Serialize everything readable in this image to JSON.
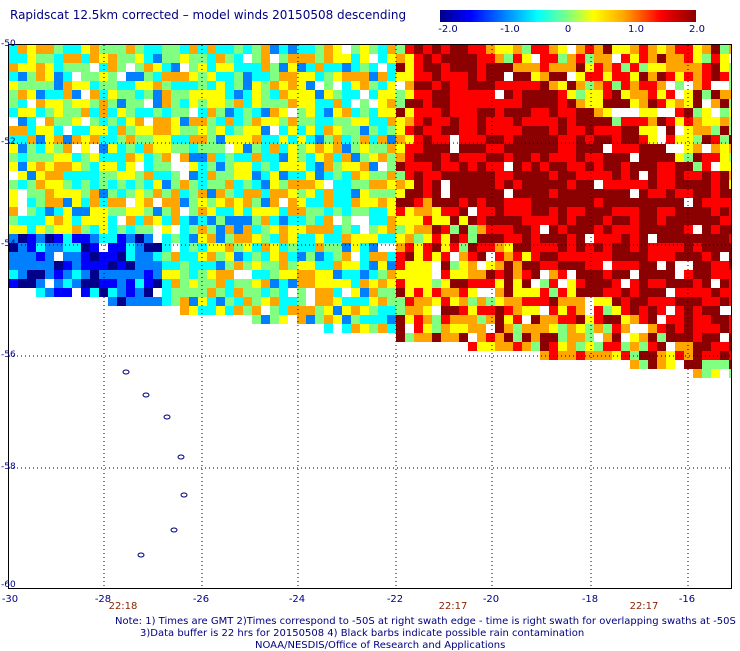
{
  "title": "Rapidscat 12.5km corrected – model winds 20150508 descending",
  "colorbar": {
    "ticks": [
      "-2.0",
      "-1.0",
      "0",
      "1.0",
      "2.0"
    ],
    "range": [
      -2.0,
      2.0
    ]
  },
  "chart_data": {
    "type": "heatmap",
    "y_axis": {
      "ticks": [
        "-50",
        "-52",
        "-54",
        "-56",
        "-58",
        "-60"
      ]
    },
    "x_axis": {
      "ticks": [
        "-30",
        "-28",
        "-26",
        "-24",
        "-22",
        "-20",
        "-18",
        "-16"
      ]
    },
    "time_labels": [
      "22:18",
      "22:17",
      "22:17"
    ],
    "grid": true,
    "colors": {
      "scale": [
        "#00008b",
        "#0000ff",
        "#0080ff",
        "#00ffff",
        "#80ff80",
        "#ffff00",
        "#ffa500",
        "#ff0000",
        "#8b0000"
      ]
    }
  },
  "notes": [
    "Note: 1) Times are GMT 2)Times correspond to -50S at right swath edge - time is right swath for overlapping swaths at -50S",
    "3)Data buffer is 22 hrs for 20150508 4) Black barbs indicate possible rain contamination",
    "NOAA/NESDIS/Office of Research and Applications"
  ]
}
